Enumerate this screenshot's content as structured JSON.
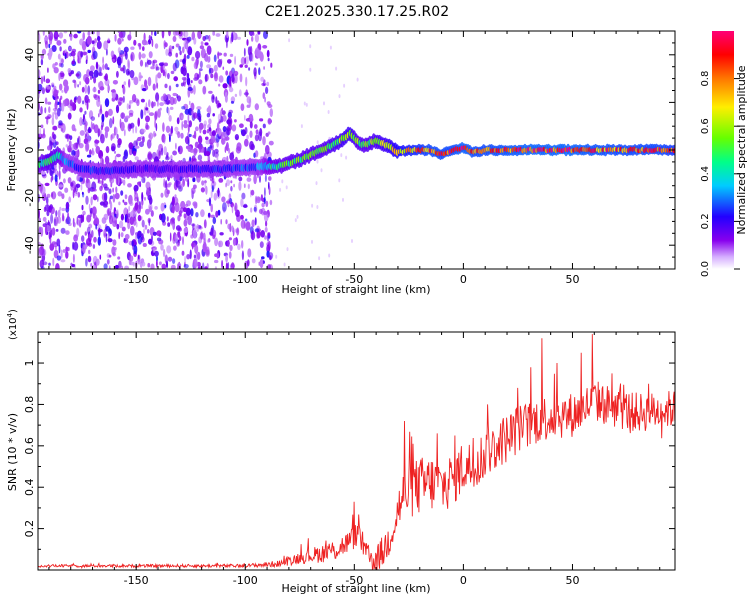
{
  "title": "C2E1.2025.330.17.25.R02",
  "chart_data": [
    {
      "type": "heatmap",
      "name": "spectrogram",
      "xlabel": "Height of straight line (km)",
      "ylabel": "Frequency (Hz)",
      "xlim": [
        -195,
        97
      ],
      "ylim": [
        -50,
        50
      ],
      "xticks": [
        -150,
        -100,
        -50,
        0,
        50
      ],
      "yticks": [
        -40,
        -20,
        0,
        20,
        40
      ],
      "colorbar": {
        "label": "Normalized spectral amplitude",
        "range": [
          0,
          1
        ],
        "ticks": [
          0.0,
          0.2,
          0.4,
          0.6,
          0.8
        ],
        "tick_labels": [
          "0.0",
          "0.2",
          "0.4",
          "0.6",
          "0.8"
        ],
        "colormap": [
          "#ffffff",
          "#d6b0ff",
          "#8800ee",
          "#2200ff",
          "#00ccff",
          "#00ff88",
          "#66ff00",
          "#ffee00",
          "#ff7700",
          "#ff0000",
          "#ff0077"
        ]
      },
      "track": {
        "x": [
          -195,
          -190,
          -186,
          -182,
          -175,
          -165,
          -150,
          -130,
          -110,
          -95,
          -85,
          -75,
          -65,
          -58,
          -52,
          -48,
          -45,
          -40,
          -35,
          -30,
          -25,
          -20,
          -15,
          -10,
          -5,
          0,
          5,
          10,
          20,
          30,
          40,
          50,
          60,
          70,
          80,
          90,
          97
        ],
        "y": [
          -6,
          -5,
          -2,
          -5,
          -8,
          -9,
          -8,
          -8,
          -8,
          -7,
          -7,
          -4,
          0,
          3,
          7,
          3,
          2,
          4,
          2,
          -1,
          0,
          0,
          0,
          -2,
          0,
          1,
          -1,
          0,
          0,
          0,
          0,
          0,
          0,
          0,
          0,
          0,
          0
        ],
        "amplitude": [
          0.45,
          0.55,
          0.5,
          0.3,
          0.25,
          0.25,
          0.2,
          0.2,
          0.25,
          0.3,
          0.5,
          0.55,
          0.55,
          0.6,
          0.65,
          0.55,
          0.55,
          0.6,
          0.65,
          0.75,
          0.8,
          0.85,
          0.9,
          0.9,
          0.9,
          0.95,
          0.9,
          0.9,
          0.92,
          0.95,
          0.95,
          0.95,
          0.92,
          0.9,
          0.9,
          0.9,
          0.85
        ]
      }
    },
    {
      "type": "line",
      "name": "snr",
      "xlabel": "Height of straight line (km)",
      "ylabel": "SNR (10 * v/v)",
      "y_scale_label": "(x10",
      "y_scale_exp": "4",
      "y_scale_close": ")",
      "xlim": [
        -195,
        97
      ],
      "ylim": [
        0.0,
        1.15
      ],
      "xticks": [
        -150,
        -100,
        -50,
        0,
        50
      ],
      "yticks": [
        0.2,
        0.4,
        0.6,
        0.8,
        1.0
      ],
      "color": "#ee2222",
      "envelope": {
        "x": [
          -195,
          -100,
          -85,
          -75,
          -65,
          -58,
          -52,
          -48,
          -44,
          -40,
          -36,
          -32,
          -28,
          -22,
          -15,
          -10,
          -5,
          0,
          5,
          10,
          15,
          20,
          25,
          30,
          35,
          40,
          50,
          55,
          60,
          70,
          80,
          90,
          97
        ],
        "y": [
          0.02,
          0.02,
          0.03,
          0.06,
          0.08,
          0.1,
          0.14,
          0.18,
          0.06,
          0.05,
          0.1,
          0.22,
          0.35,
          0.4,
          0.42,
          0.4,
          0.44,
          0.5,
          0.5,
          0.56,
          0.6,
          0.64,
          0.68,
          0.7,
          0.73,
          0.74,
          0.75,
          0.78,
          0.82,
          0.78,
          0.76,
          0.77,
          0.78
        ]
      },
      "noise": {
        "x": [
          -195,
          -100,
          -85,
          -60,
          -40,
          -30,
          -20,
          0,
          30,
          60,
          97
        ],
        "y": [
          0.005,
          0.006,
          0.012,
          0.04,
          0.05,
          0.09,
          0.11,
          0.1,
          0.09,
          0.08,
          0.07
        ]
      },
      "peaks": [
        {
          "x": -50,
          "y": 0.33
        },
        {
          "x": -27,
          "y": 0.72
        },
        {
          "x": -23,
          "y": 0.61
        },
        {
          "x": -12,
          "y": 0.66
        },
        {
          "x": -4,
          "y": 0.65
        },
        {
          "x": 11,
          "y": 0.8
        },
        {
          "x": 25,
          "y": 0.88
        },
        {
          "x": 31,
          "y": 0.98
        },
        {
          "x": 36,
          "y": 1.12
        },
        {
          "x": 43,
          "y": 1.0
        },
        {
          "x": 54,
          "y": 1.05
        },
        {
          "x": 59,
          "y": 1.14
        },
        {
          "x": 68,
          "y": 0.95
        },
        {
          "x": 85,
          "y": 0.9
        }
      ]
    }
  ]
}
